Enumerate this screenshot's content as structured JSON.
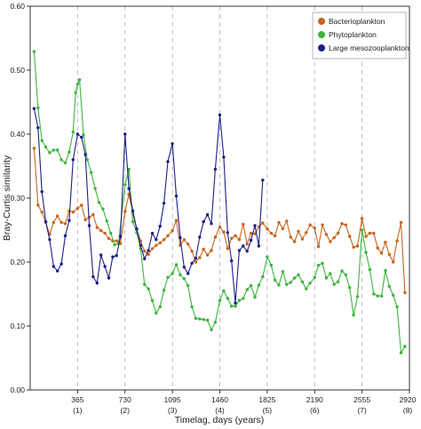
{
  "chart_data": {
    "type": "line",
    "xlabel": "Timelag, days (years)",
    "ylabel": "Bray-Curtis similarity",
    "xlim": [
      0,
      2920
    ],
    "ylim": [
      0,
      0.6
    ],
    "grid": "dashed vertical lines at yearly ticks",
    "legend_position": "top-right",
    "x_ticks": [
      {
        "value": 365,
        "label": "365",
        "sublabel": "(1)"
      },
      {
        "value": 730,
        "label": "730",
        "sublabel": "(2)"
      },
      {
        "value": 1095,
        "label": "1095",
        "sublabel": "(3)"
      },
      {
        "value": 1460,
        "label": "1460",
        "sublabel": "(4)"
      },
      {
        "value": 1825,
        "label": "1825",
        "sublabel": "(5)"
      },
      {
        "value": 2190,
        "label": "2190",
        "sublabel": "(6)"
      },
      {
        "value": 2555,
        "label": "2555",
        "sublabel": "(7)"
      },
      {
        "value": 2920,
        "label": "2920",
        "sublabel": "(8)"
      }
    ],
    "y_ticks": [
      "0.00",
      "0.10",
      "0.20",
      "0.30",
      "0.40",
      "0.50",
      "0.60"
    ],
    "series": [
      {
        "name": "Bacterioplankton",
        "color": "#c8641e",
        "points": [
          [
            30,
            0.378
          ],
          [
            60,
            0.289
          ],
          [
            90,
            0.278
          ],
          [
            120,
            0.262
          ],
          [
            150,
            0.243
          ],
          [
            180,
            0.262
          ],
          [
            210,
            0.272
          ],
          [
            240,
            0.262
          ],
          [
            270,
            0.26
          ],
          [
            300,
            0.28
          ],
          [
            330,
            0.278
          ],
          [
            365,
            0.284
          ],
          [
            395,
            0.289
          ],
          [
            425,
            0.266
          ],
          [
            455,
            0.27
          ],
          [
            485,
            0.274
          ],
          [
            515,
            0.254
          ],
          [
            545,
            0.249
          ],
          [
            575,
            0.245
          ],
          [
            605,
            0.237
          ],
          [
            635,
            0.233
          ],
          [
            665,
            0.233
          ],
          [
            695,
            0.229
          ],
          [
            730,
            0.279
          ],
          [
            760,
            0.306
          ],
          [
            790,
            0.276
          ],
          [
            820,
            0.251
          ],
          [
            850,
            0.233
          ],
          [
            880,
            0.217
          ],
          [
            910,
            0.212
          ],
          [
            940,
            0.221
          ],
          [
            970,
            0.226
          ],
          [
            1000,
            0.23
          ],
          [
            1030,
            0.235
          ],
          [
            1060,
            0.241
          ],
          [
            1095,
            0.249
          ],
          [
            1125,
            0.265
          ],
          [
            1155,
            0.226
          ],
          [
            1185,
            0.235
          ],
          [
            1215,
            0.228
          ],
          [
            1245,
            0.217
          ],
          [
            1275,
            0.2
          ],
          [
            1305,
            0.207
          ],
          [
            1335,
            0.22
          ],
          [
            1365,
            0.211
          ],
          [
            1395,
            0.218
          ],
          [
            1425,
            0.239
          ],
          [
            1460,
            0.255
          ],
          [
            1490,
            0.247
          ],
          [
            1520,
            0.221
          ],
          [
            1550,
            0.237
          ],
          [
            1580,
            0.241
          ],
          [
            1610,
            0.235
          ],
          [
            1640,
            0.259
          ],
          [
            1670,
            0.228
          ],
          [
            1700,
            0.245
          ],
          [
            1730,
            0.244
          ],
          [
            1760,
            0.255
          ],
          [
            1790,
            0.261
          ],
          [
            1825,
            0.252
          ],
          [
            1855,
            0.245
          ],
          [
            1885,
            0.241
          ],
          [
            1915,
            0.262
          ],
          [
            1945,
            0.252
          ],
          [
            1975,
            0.264
          ],
          [
            2005,
            0.239
          ],
          [
            2035,
            0.232
          ],
          [
            2065,
            0.248
          ],
          [
            2095,
            0.236
          ],
          [
            2125,
            0.246
          ],
          [
            2155,
            0.258
          ],
          [
            2190,
            0.253
          ],
          [
            2220,
            0.224
          ],
          [
            2250,
            0.258
          ],
          [
            2280,
            0.243
          ],
          [
            2310,
            0.232
          ],
          [
            2340,
            0.238
          ],
          [
            2370,
            0.245
          ],
          [
            2400,
            0.26
          ],
          [
            2430,
            0.258
          ],
          [
            2460,
            0.24
          ],
          [
            2490,
            0.223
          ],
          [
            2520,
            0.225
          ],
          [
            2555,
            0.268
          ],
          [
            2585,
            0.24
          ],
          [
            2615,
            0.245
          ],
          [
            2645,
            0.245
          ],
          [
            2675,
            0.222
          ],
          [
            2705,
            0.214
          ],
          [
            2735,
            0.231
          ],
          [
            2765,
            0.212
          ],
          [
            2795,
            0.2
          ],
          [
            2825,
            0.233
          ],
          [
            2855,
            0.262
          ],
          [
            2885,
            0.152
          ]
        ]
      },
      {
        "name": "Phytoplankton",
        "color": "#3cb43c",
        "points": [
          [
            30,
            0.529
          ],
          [
            60,
            0.441
          ],
          [
            90,
            0.39
          ],
          [
            120,
            0.38
          ],
          [
            150,
            0.371
          ],
          [
            180,
            0.375
          ],
          [
            210,
            0.375
          ],
          [
            240,
            0.36
          ],
          [
            270,
            0.355
          ],
          [
            300,
            0.372
          ],
          [
            330,
            0.403
          ],
          [
            350,
            0.465
          ],
          [
            365,
            0.478
          ],
          [
            380,
            0.485
          ],
          [
            410,
            0.399
          ],
          [
            440,
            0.36
          ],
          [
            470,
            0.34
          ],
          [
            500,
            0.315
          ],
          [
            530,
            0.293
          ],
          [
            560,
            0.283
          ],
          [
            590,
            0.264
          ],
          [
            620,
            0.245
          ],
          [
            650,
            0.227
          ],
          [
            680,
            0.229
          ],
          [
            730,
            0.321
          ],
          [
            760,
            0.345
          ],
          [
            790,
            0.263
          ],
          [
            820,
            0.246
          ],
          [
            850,
            0.221
          ],
          [
            880,
            0.165
          ],
          [
            910,
            0.158
          ],
          [
            940,
            0.14
          ],
          [
            970,
            0.12
          ],
          [
            1000,
            0.13
          ],
          [
            1030,
            0.156
          ],
          [
            1060,
            0.176
          ],
          [
            1095,
            0.182
          ],
          [
            1125,
            0.196
          ],
          [
            1155,
            0.18
          ],
          [
            1185,
            0.174
          ],
          [
            1215,
            0.163
          ],
          [
            1245,
            0.13
          ],
          [
            1275,
            0.112
          ],
          [
            1305,
            0.111
          ],
          [
            1335,
            0.11
          ],
          [
            1365,
            0.109
          ],
          [
            1395,
            0.094
          ],
          [
            1425,
            0.106
          ],
          [
            1460,
            0.14
          ],
          [
            1490,
            0.155
          ],
          [
            1520,
            0.143
          ],
          [
            1550,
            0.131
          ],
          [
            1580,
            0.131
          ],
          [
            1610,
            0.14
          ],
          [
            1640,
            0.143
          ],
          [
            1670,
            0.157
          ],
          [
            1700,
            0.163
          ],
          [
            1730,
            0.145
          ],
          [
            1760,
            0.164
          ],
          [
            1790,
            0.177
          ],
          [
            1825,
            0.208
          ],
          [
            1855,
            0.195
          ],
          [
            1885,
            0.172
          ],
          [
            1915,
            0.164
          ],
          [
            1945,
            0.185
          ],
          [
            1975,
            0.165
          ],
          [
            2005,
            0.168
          ],
          [
            2035,
            0.175
          ],
          [
            2065,
            0.18
          ],
          [
            2095,
            0.169
          ],
          [
            2125,
            0.158
          ],
          [
            2155,
            0.167
          ],
          [
            2190,
            0.176
          ],
          [
            2220,
            0.195
          ],
          [
            2250,
            0.198
          ],
          [
            2280,
            0.175
          ],
          [
            2310,
            0.182
          ],
          [
            2340,
            0.165
          ],
          [
            2370,
            0.169
          ],
          [
            2400,
            0.186
          ],
          [
            2430,
            0.18
          ],
          [
            2460,
            0.16
          ],
          [
            2490,
            0.117
          ],
          [
            2520,
            0.146
          ],
          [
            2555,
            0.25
          ],
          [
            2585,
            0.215
          ],
          [
            2615,
            0.188
          ],
          [
            2645,
            0.15
          ],
          [
            2675,
            0.147
          ],
          [
            2705,
            0.147
          ],
          [
            2735,
            0.187
          ],
          [
            2765,
            0.162
          ],
          [
            2795,
            0.148
          ],
          [
            2825,
            0.13
          ],
          [
            2855,
            0.058
          ],
          [
            2885,
            0.068
          ]
        ]
      },
      {
        "name": "Large mesozooplankton",
        "color": "#1e1e87",
        "points": [
          [
            30,
            0.44
          ],
          [
            60,
            0.41
          ],
          [
            90,
            0.31
          ],
          [
            120,
            0.263
          ],
          [
            150,
            0.235
          ],
          [
            180,
            0.193
          ],
          [
            210,
            0.186
          ],
          [
            240,
            0.197
          ],
          [
            270,
            0.241
          ],
          [
            300,
            0.265
          ],
          [
            330,
            0.36
          ],
          [
            365,
            0.4
          ],
          [
            395,
            0.395
          ],
          [
            425,
            0.368
          ],
          [
            455,
            0.257
          ],
          [
            485,
            0.177
          ],
          [
            515,
            0.167
          ],
          [
            545,
            0.211
          ],
          [
            575,
            0.193
          ],
          [
            605,
            0.175
          ],
          [
            635,
            0.208
          ],
          [
            665,
            0.21
          ],
          [
            695,
            0.24
          ],
          [
            730,
            0.4
          ],
          [
            760,
            0.315
          ],
          [
            790,
            0.28
          ],
          [
            820,
            0.252
          ],
          [
            850,
            0.226
          ],
          [
            880,
            0.205
          ],
          [
            910,
            0.218
          ],
          [
            940,
            0.245
          ],
          [
            970,
            0.235
          ],
          [
            1000,
            0.256
          ],
          [
            1030,
            0.292
          ],
          [
            1060,
            0.357
          ],
          [
            1095,
            0.385
          ],
          [
            1125,
            0.303
          ],
          [
            1155,
            0.238
          ],
          [
            1185,
            0.192
          ],
          [
            1215,
            0.182
          ],
          [
            1245,
            0.198
          ],
          [
            1275,
            0.206
          ],
          [
            1305,
            0.239
          ],
          [
            1335,
            0.263
          ],
          [
            1365,
            0.274
          ],
          [
            1395,
            0.26
          ],
          [
            1425,
            0.345
          ],
          [
            1460,
            0.43
          ],
          [
            1490,
            0.364
          ],
          [
            1520,
            0.246
          ],
          [
            1550,
            0.202
          ],
          [
            1580,
            0.136
          ],
          [
            1610,
            0.218
          ],
          [
            1640,
            0.225
          ],
          [
            1670,
            0.217
          ],
          [
            1700,
            0.234
          ],
          [
            1730,
            0.257
          ],
          [
            1760,
            0.225
          ],
          [
            1790,
            0.328
          ]
        ]
      }
    ]
  }
}
